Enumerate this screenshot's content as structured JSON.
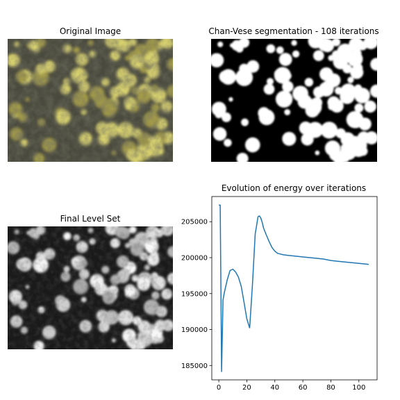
{
  "panels": {
    "original": {
      "title": "Original Image",
      "description": "micrograph of yellow-green lichen clusters on dark grey bark"
    },
    "segmentation": {
      "title": "Chan-Vese segmentation - 108 iterations"
    },
    "level_set": {
      "title": "Final Level Set"
    }
  },
  "colors": {
    "line": "#1f77b4",
    "lichen": "#d6cf6e",
    "lichen_dark": "#a29a48",
    "bark": "#3b3a30"
  },
  "chart_data": {
    "type": "line",
    "title": "Evolution of energy over iterations",
    "xlabel": "",
    "ylabel": "",
    "xlim": [
      -5,
      113
    ],
    "ylim": [
      183000,
      208500
    ],
    "xticks": [
      0,
      20,
      40,
      60,
      80,
      100
    ],
    "yticks": [
      185000,
      190000,
      195000,
      200000,
      205000
    ],
    "grid": false,
    "series": [
      {
        "name": "",
        "x": [
          0,
          1,
          2,
          3,
          4,
          6,
          8,
          10,
          12,
          14,
          16,
          18,
          20,
          22,
          24,
          26,
          28,
          29,
          30,
          31,
          32,
          34,
          36,
          38,
          40,
          42,
          44,
          46,
          50,
          55,
          60,
          65,
          70,
          75,
          80,
          85,
          90,
          95,
          100,
          105,
          107
        ],
        "y": [
          207300,
          207300,
          184100,
          194100,
          195200,
          196900,
          198200,
          198400,
          198000,
          197300,
          196000,
          193800,
          191500,
          190200,
          196200,
          203300,
          205700,
          205800,
          205500,
          204900,
          204100,
          203100,
          202200,
          201400,
          200900,
          200600,
          200500,
          200400,
          200300,
          200200,
          200100,
          200000,
          199900,
          199800,
          199600,
          199500,
          199400,
          199300,
          199200,
          199100,
          199050
        ]
      }
    ]
  }
}
